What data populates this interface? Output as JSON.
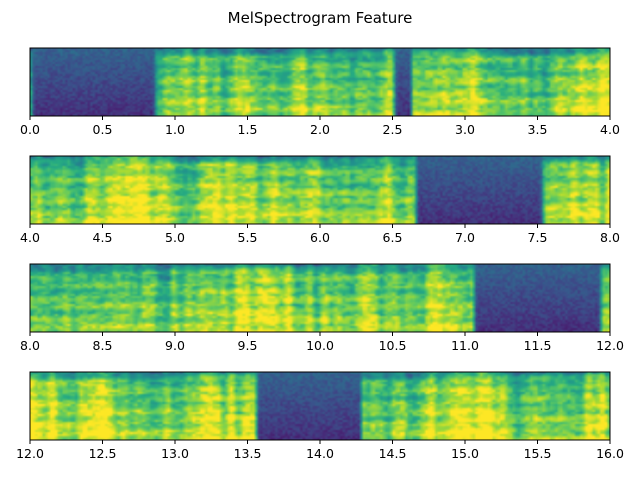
{
  "figure": {
    "title": "MelSpectrogram Feature"
  },
  "chart_data": [
    {
      "type": "heatmap",
      "colormap": "viridis",
      "x_range": [
        0.0,
        4.0
      ],
      "x_ticks": [
        "0.0",
        "0.5",
        "1.0",
        "1.5",
        "2.0",
        "2.5",
        "3.0",
        "3.5",
        "4.0"
      ],
      "y_ticks": [],
      "low_energy_regions": [
        [
          0.0,
          0.88
        ],
        [
          2.5,
          2.65
        ]
      ]
    },
    {
      "type": "heatmap",
      "colormap": "viridis",
      "x_range": [
        4.0,
        8.0
      ],
      "x_ticks": [
        "4.0",
        "4.5",
        "5.0",
        "5.5",
        "6.0",
        "6.5",
        "7.0",
        "7.5",
        "8.0"
      ],
      "y_ticks": [],
      "low_energy_regions": [
        [
          6.65,
          7.55
        ]
      ]
    },
    {
      "type": "heatmap",
      "colormap": "viridis",
      "x_range": [
        8.0,
        12.0
      ],
      "x_ticks": [
        "8.0",
        "8.5",
        "9.0",
        "9.5",
        "10.0",
        "10.5",
        "11.0",
        "11.5",
        "12.0"
      ],
      "y_ticks": [],
      "low_energy_regions": [
        [
          11.05,
          11.95
        ]
      ]
    },
    {
      "type": "heatmap",
      "colormap": "viridis",
      "x_range": [
        12.0,
        16.0
      ],
      "x_ticks": [
        "12.0",
        "12.5",
        "13.0",
        "13.5",
        "14.0",
        "14.5",
        "15.0",
        "15.5",
        "16.0"
      ],
      "y_ticks": [],
      "low_energy_regions": [
        [
          13.55,
          14.3
        ]
      ]
    }
  ]
}
